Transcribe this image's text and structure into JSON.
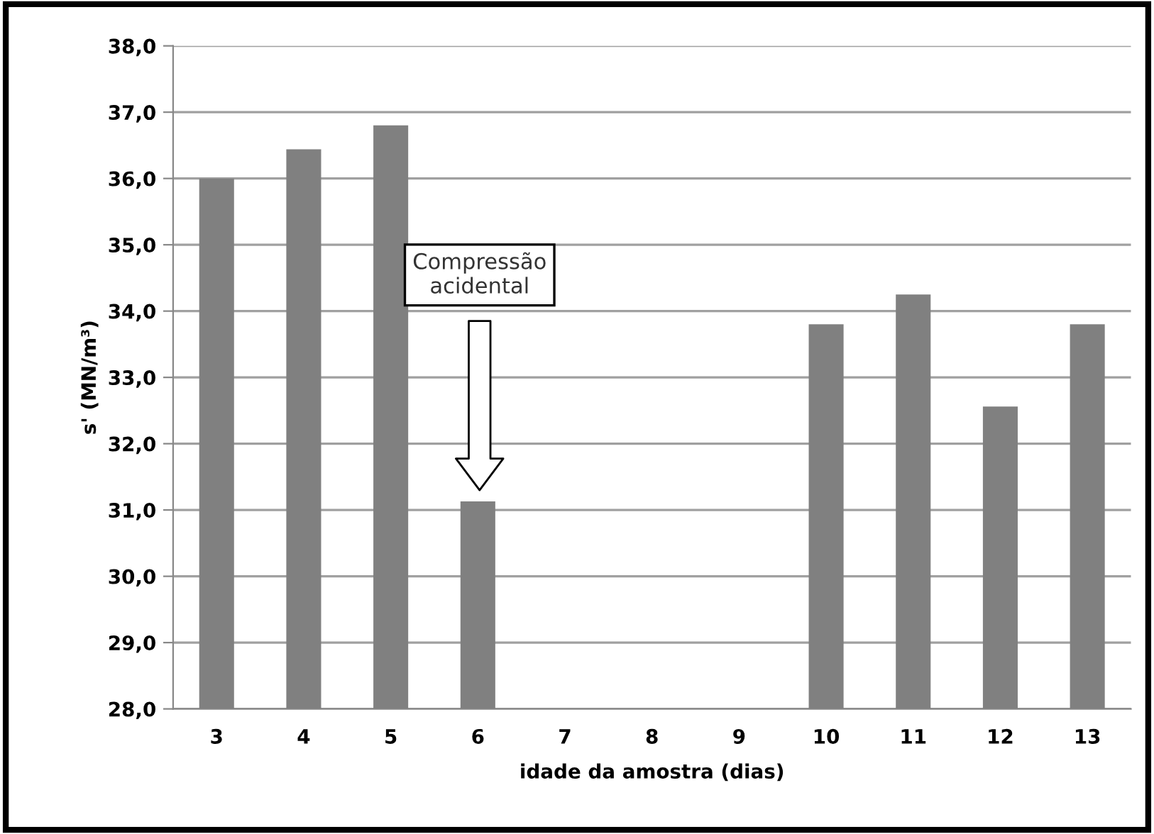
{
  "chart_data": {
    "type": "bar",
    "xlabel": "idade da amostra (dias)",
    "ylabel": "s' (MN/m³)",
    "categories": [
      "3",
      "4",
      "5",
      "6",
      "7",
      "8",
      "9",
      "10",
      "11",
      "12",
      "13"
    ],
    "values": [
      36.0,
      36.44,
      36.8,
      31.13,
      null,
      null,
      null,
      33.8,
      34.25,
      32.56,
      33.8
    ],
    "color": "#808080",
    "ylim": [
      28,
      38
    ],
    "yticks": [
      {
        "value": 28,
        "label": "28,0"
      },
      {
        "value": 29,
        "label": "29,0"
      },
      {
        "value": 30,
        "label": "30,0"
      },
      {
        "value": 31,
        "label": "31,0"
      },
      {
        "value": 32,
        "label": "32,0"
      },
      {
        "value": 33,
        "label": "33,0"
      },
      {
        "value": 34,
        "label": "34,0"
      },
      {
        "value": 35,
        "label": "35,0"
      },
      {
        "value": 36,
        "label": "36,0"
      },
      {
        "value": 37,
        "label": "37,0"
      },
      {
        "value": 38,
        "label": "38,0"
      }
    ],
    "grid": "y",
    "annotations": [
      "Compressão\nacidental"
    ]
  }
}
